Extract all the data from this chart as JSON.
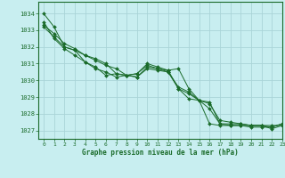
{
  "title": "Graphe pression niveau de la mer (hPa)",
  "bg_color": "#c8eef0",
  "grid_color": "#aad4d8",
  "line_color": "#1a6b2a",
  "marker_color": "#1a6b2a",
  "xlim": [
    -0.5,
    23
  ],
  "ylim": [
    1026.5,
    1034.7
  ],
  "yticks": [
    1027,
    1028,
    1029,
    1030,
    1031,
    1032,
    1033,
    1034
  ],
  "xticks": [
    0,
    1,
    2,
    3,
    4,
    5,
    6,
    7,
    8,
    9,
    10,
    11,
    12,
    13,
    14,
    15,
    16,
    17,
    18,
    19,
    20,
    21,
    22,
    23
  ],
  "series": [
    [
      1034.0,
      1033.2,
      1032.0,
      1031.8,
      1031.1,
      1030.8,
      1030.3,
      1030.4,
      1030.3,
      1030.2,
      1030.8,
      1030.7,
      1030.6,
      1030.7,
      1029.5,
      1028.8,
      1027.4,
      1027.3,
      1027.3,
      1027.3,
      1027.3,
      1027.3,
      1027.3,
      1027.3
    ],
    [
      1033.5,
      1032.5,
      1031.9,
      1031.5,
      1031.1,
      1030.7,
      1030.5,
      1030.2,
      1030.3,
      1030.2,
      1030.7,
      1030.6,
      1030.5,
      1029.6,
      1029.3,
      1028.8,
      1028.7,
      1027.4,
      1027.3,
      1027.3,
      1027.2,
      1027.2,
      1027.2,
      1027.4
    ],
    [
      1033.2,
      1032.6,
      1032.0,
      1031.8,
      1031.5,
      1031.2,
      1030.9,
      1030.7,
      1030.3,
      1030.4,
      1030.9,
      1030.7,
      1030.5,
      1029.5,
      1028.9,
      1028.8,
      1028.3,
      1027.4,
      1027.4,
      1027.4,
      1027.3,
      1027.3,
      1027.1,
      1027.3
    ],
    [
      1033.3,
      1032.8,
      1032.2,
      1031.9,
      1031.5,
      1031.3,
      1031.0,
      1030.4,
      1030.3,
      1030.4,
      1031.0,
      1030.8,
      1030.6,
      1029.5,
      1029.2,
      1028.8,
      1028.6,
      1027.6,
      1027.5,
      1027.4,
      1027.3,
      1027.3,
      1027.2,
      1027.4
    ]
  ],
  "figsize": [
    3.2,
    2.0
  ],
  "dpi": 100
}
